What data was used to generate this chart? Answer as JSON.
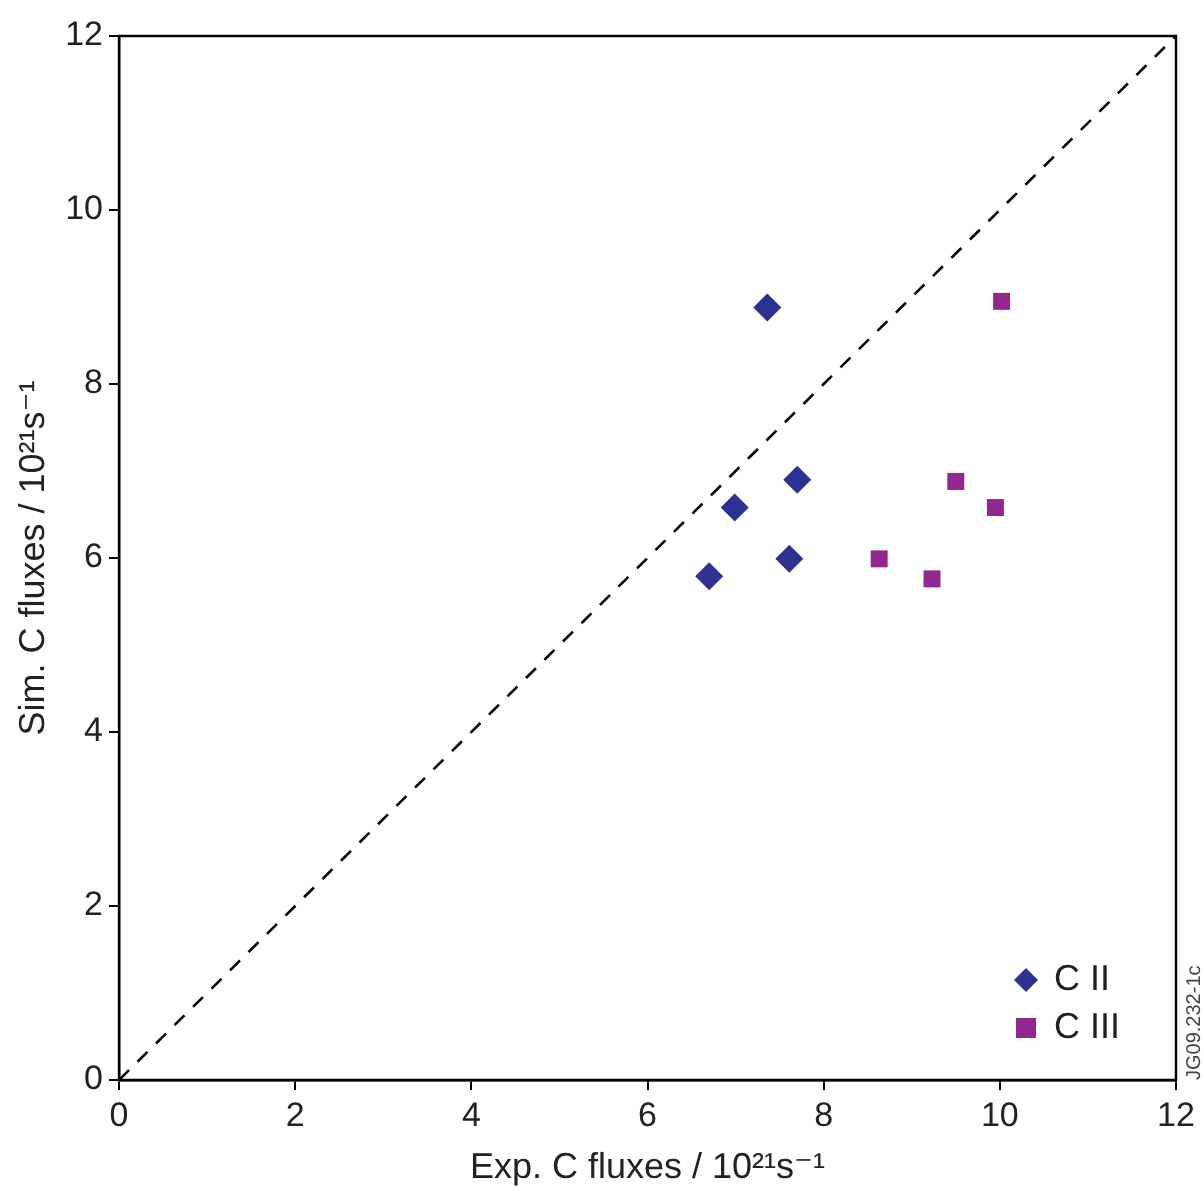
{
  "chart_data": {
    "type": "scatter",
    "xlabel": "Exp. C fluxes / 10²¹s⁻¹",
    "ylabel": "Sim. C fluxes / 10²¹s⁻¹",
    "xlim": [
      0,
      12
    ],
    "ylim": [
      0,
      12
    ],
    "xticks": [
      0,
      2,
      4,
      6,
      8,
      10,
      12
    ],
    "yticks": [
      0,
      2,
      4,
      6,
      8,
      10,
      12
    ],
    "grid": false,
    "legend": "bottom right",
    "annotations": [
      "JG09.232-1c"
    ],
    "series": [
      {
        "name": "C II",
        "color": "#2e3192",
        "marker": "diamond",
        "x": [
          7.36,
          6.99,
          7.7,
          6.7,
          7.61
        ],
        "values": [
          8.88,
          6.58,
          6.9,
          5.79,
          5.99
        ]
      },
      {
        "name": "C III",
        "color": "#92278f",
        "marker": "square",
        "x": [
          10.02,
          9.5,
          9.95,
          8.63,
          9.23
        ],
        "values": [
          8.95,
          6.88,
          6.58,
          5.99,
          5.76
        ]
      },
      {
        "type": "line",
        "color": "#000000",
        "line_style": "dashed",
        "marker": "none",
        "x": [
          0,
          12
        ],
        "values": [
          0,
          12
        ]
      }
    ]
  }
}
